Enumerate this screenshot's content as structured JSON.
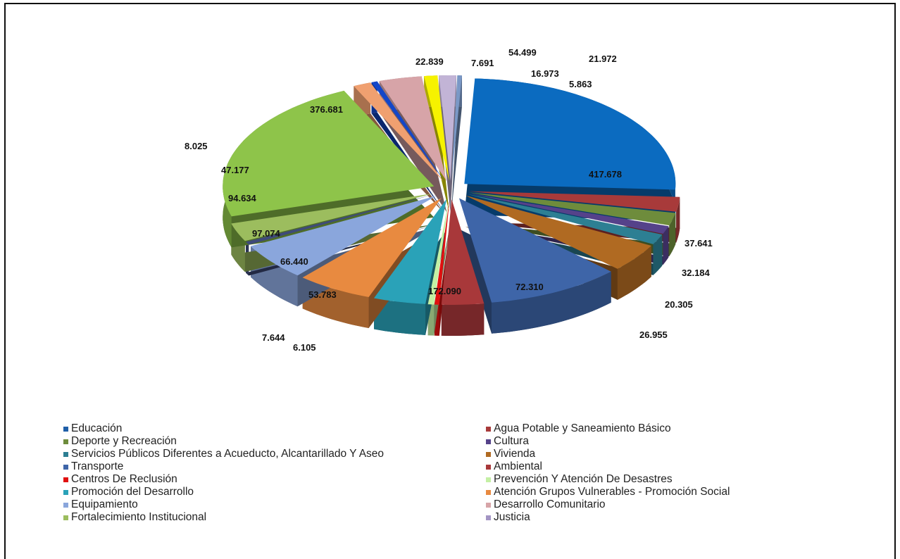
{
  "chart_data": {
    "type": "pie",
    "style": "3d-exploded",
    "legend_position": "bottom",
    "slices": [
      {
        "name": "Educación",
        "value": 417.678,
        "label": "417.678",
        "color": "#0b6bc0"
      },
      {
        "name": "Agua Potable y Saneamiento Básico",
        "value": 37.641,
        "label": "37.641",
        "color": "#a83a3a"
      },
      {
        "name": "Deporte y Recreación",
        "value": 32.184,
        "label": "32.184",
        "color": "#6e8c3c"
      },
      {
        "name": "Cultura",
        "value": 20.305,
        "label": "20.305",
        "color": "#55428a"
      },
      {
        "name": "Servicios Públicos Diferentes a Acueducto, Alcantarillado Y Aseo",
        "value": 26.955,
        "label": "26.955",
        "color": "#2d7f93"
      },
      {
        "name": "Vivienda",
        "value": 72.31,
        "label": "72.310",
        "color": "#b06a22"
      },
      {
        "name": "Transporte",
        "value": 172.09,
        "label": "172.090",
        "color": "#3e65a8"
      },
      {
        "name": "Ambiental",
        "value": 53.783,
        "label": "53.783",
        "color": "#a8383a"
      },
      {
        "name": "Centros De Reclusión",
        "value": 6.105,
        "label": "6.105",
        "color": "#e01010"
      },
      {
        "name": "Prevención Y Atención De Desastres",
        "value": 7.644,
        "label": "7.644",
        "color": "#c4f0a4"
      },
      {
        "name": "Promoción del Desarrollo",
        "value": 66.44,
        "label": "66.440",
        "color": "#2aa2b8"
      },
      {
        "name": "Atención Grupos Vulnerables - Promoción Social",
        "value": 97.074,
        "label": "97.074",
        "color": "#e88a40"
      },
      {
        "name": "Equipamiento",
        "value": 94.634,
        "label": "94.634",
        "color": "#8aa6dc"
      },
      {
        "name": "Desarrollo Comunitario",
        "value": 8.025,
        "label": "8.025",
        "color": "#3e4a7a"
      },
      {
        "name": "Fortalecimiento Institucional",
        "value": 47.177,
        "label": "47.177",
        "color": "#9cbd5e"
      },
      {
        "name": "Justicia",
        "value": 376.681,
        "label": "376.681",
        "color": "#8ec44a"
      },
      {
        "name": "",
        "value": 22.839,
        "label": "22.839",
        "color": "#f0a070"
      },
      {
        "name": "",
        "value": 7.691,
        "label": "7.691",
        "color": "#1346c8"
      },
      {
        "name": "",
        "value": 54.499,
        "label": "54.499",
        "color": "#d7a4a8"
      },
      {
        "name": "",
        "value": 16.973,
        "label": "16.973",
        "color": "#f6f200"
      },
      {
        "name": "",
        "value": 21.972,
        "label": "21.972",
        "color": "#c2b4d6"
      },
      {
        "name": "",
        "value": 5.863,
        "label": "5.863",
        "color": "#7a98c6"
      },
      {
        "name": "",
        "value": 0,
        "label": "",
        "color": "#a6b4be"
      }
    ]
  },
  "legend": {
    "items": [
      {
        "label": "Educación",
        "color": "#1f5fa8"
      },
      {
        "label": "Agua Potable y Saneamiento Básico",
        "color": "#a83a3a"
      },
      {
        "label": "Deporte y Recreación",
        "color": "#6e8c3c"
      },
      {
        "label": "Cultura",
        "color": "#55428a"
      },
      {
        "label": "Servicios Públicos Diferentes a Acueducto, Alcantarillado Y Aseo",
        "color": "#2d7f93"
      },
      {
        "label": "Vivienda",
        "color": "#b06a22"
      },
      {
        "label": "Transporte",
        "color": "#3e65a8"
      },
      {
        "label": "Ambiental",
        "color": "#a8383a"
      },
      {
        "label": "Centros De Reclusión",
        "color": "#e01010"
      },
      {
        "label": "Prevención Y Atención De Desastres",
        "color": "#c4f0a4"
      },
      {
        "label": "Promoción del Desarrollo",
        "color": "#2aa2b8"
      },
      {
        "label": "Atención Grupos Vulnerables - Promoción Social",
        "color": "#e88a40"
      },
      {
        "label": "Equipamiento",
        "color": "#8aa6dc"
      },
      {
        "label": "Desarrollo Comunitario",
        "color": "#d7a4a8"
      },
      {
        "label": "Fortalecimiento Institucional",
        "color": "#9cbd5e"
      },
      {
        "label": "Justicia",
        "color": "#a395c4"
      }
    ]
  }
}
